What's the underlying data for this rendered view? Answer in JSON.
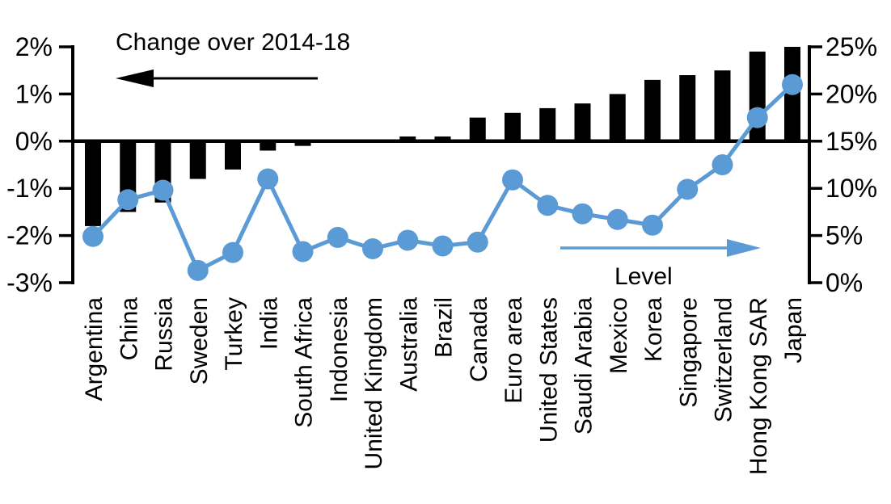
{
  "figure": {
    "description": "Dual-axis combo chart: black bars show change over 2014-18 (left axis), blue line with markers shows level (right axis), across 21 economies",
    "background_color": "#ffffff"
  },
  "colors": {
    "bar": "#000000",
    "line": "#5B9BD5",
    "axis": "#000000",
    "text": "#000000"
  },
  "annotations": {
    "left_series_title": "Change over 2014-18",
    "right_series_title": "Level"
  },
  "chart_data": {
    "type": "combo-bar-line",
    "categories": [
      "Argentina",
      "China",
      "Russia",
      "Sweden",
      "Turkey",
      "India",
      "South Africa",
      "Indonesia",
      "United Kingdom",
      "Australia",
      "Brazil",
      "Canada",
      "Euro area",
      "United States",
      "Saudi Arabia",
      "Mexico",
      "Korea",
      "Singapore",
      "Switzerland",
      "Hong Kong SAR",
      "Japan"
    ],
    "series": [
      {
        "name": "Change over 2014-18",
        "type": "bar",
        "axis": "left",
        "unit": "%",
        "values": [
          -1.8,
          -1.5,
          -1.3,
          -0.8,
          -0.6,
          -0.2,
          -0.1,
          0.0,
          0.0,
          0.1,
          0.1,
          0.5,
          0.6,
          0.7,
          0.8,
          1.0,
          1.3,
          1.4,
          1.5,
          1.9,
          2.0
        ]
      },
      {
        "name": "Level",
        "type": "line",
        "axis": "right",
        "unit": "%",
        "values": [
          4.9,
          8.8,
          9.8,
          1.3,
          3.2,
          11.0,
          3.3,
          4.8,
          3.6,
          4.5,
          3.9,
          4.3,
          10.9,
          8.2,
          7.3,
          6.7,
          6.1,
          9.9,
          12.5,
          17.5,
          21.0
        ]
      }
    ],
    "left_axis": {
      "tick_labels": [
        "2%",
        "1%",
        "0%",
        "-1%",
        "-2%",
        "-3%"
      ],
      "min": -3,
      "max": 2
    },
    "right_axis": {
      "tick_labels": [
        "25%",
        "20%",
        "15%",
        "10%",
        "5%",
        "0%"
      ],
      "min": 0,
      "max": 25
    },
    "grid": false,
    "legend_position": "in-plot text annotations with arrows pointing toward the axis each series is read on",
    "title": "Change over 2014-18",
    "xlabel": "",
    "ylabel_left": "Change over 2014-18",
    "ylabel_right": "Level"
  }
}
